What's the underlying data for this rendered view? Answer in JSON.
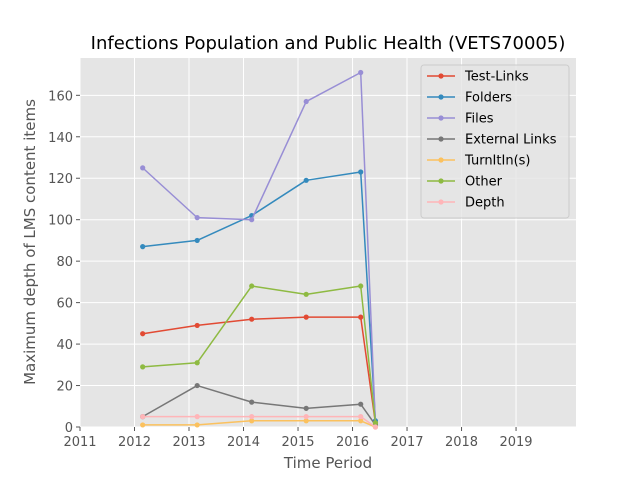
{
  "chart_data": {
    "type": "line",
    "title": "Infections Population and Public Health (VETS70005)",
    "xlabel": "Time Period",
    "ylabel": "Maximum depth of LMS content items",
    "xlim": [
      2011,
      2020.1
    ],
    "ylim": [
      0,
      178
    ],
    "x_ticks": [
      "2011",
      "2012",
      "2013",
      "2014",
      "2015",
      "2016",
      "2017",
      "2018",
      "2019"
    ],
    "y_ticks": [
      "0",
      "20",
      "40",
      "60",
      "80",
      "100",
      "120",
      "140",
      "160"
    ],
    "grid": true,
    "legend_position": "upper right",
    "x": [
      2012.15,
      2013.15,
      2014.15,
      2015.15,
      2016.15,
      2016.42
    ],
    "series": [
      {
        "name": "Test-Links",
        "color": "#e24a33",
        "values": [
          45,
          49,
          52,
          53,
          53,
          2
        ]
      },
      {
        "name": "Folders",
        "color": "#348abd",
        "values": [
          87,
          90,
          102,
          119,
          123,
          3
        ]
      },
      {
        "name": "Files",
        "color": "#988ed5",
        "values": [
          125,
          101,
          100,
          157,
          171,
          1
        ]
      },
      {
        "name": "External Links",
        "color": "#777777",
        "values": [
          5,
          20,
          12,
          9,
          11,
          1
        ]
      },
      {
        "name": "TurnItIn(s)",
        "color": "#fbc15e",
        "values": [
          1,
          1,
          3,
          3,
          3,
          0
        ]
      },
      {
        "name": "Other",
        "color": "#8eba42",
        "values": [
          29,
          31,
          68,
          64,
          68,
          2
        ]
      },
      {
        "name": "Depth",
        "color": "#ffb5b8",
        "values": [
          5,
          5,
          5,
          5,
          5,
          0
        ]
      }
    ]
  }
}
